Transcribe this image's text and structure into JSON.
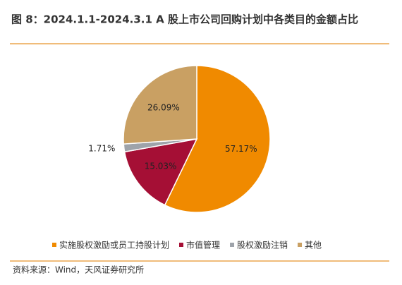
{
  "chart_data": {
    "type": "pie",
    "title": "图 8：2024.1.1-2024.3.1 A 股上市公司回购计划中各类目的金额占比",
    "categories": [
      "实施股权激励或员工持股计划",
      "市值管理",
      "股权激励注销",
      "其他"
    ],
    "values": [
      57.17,
      15.03,
      1.71,
      26.09
    ],
    "value_labels": [
      "57.17%",
      "15.03%",
      "1.71%",
      "26.09%"
    ],
    "colors": [
      "#f08a00",
      "#a50f35",
      "#9ea3aa",
      "#c9a063"
    ],
    "source": "资料来源：Wind，天风证券研究所"
  }
}
